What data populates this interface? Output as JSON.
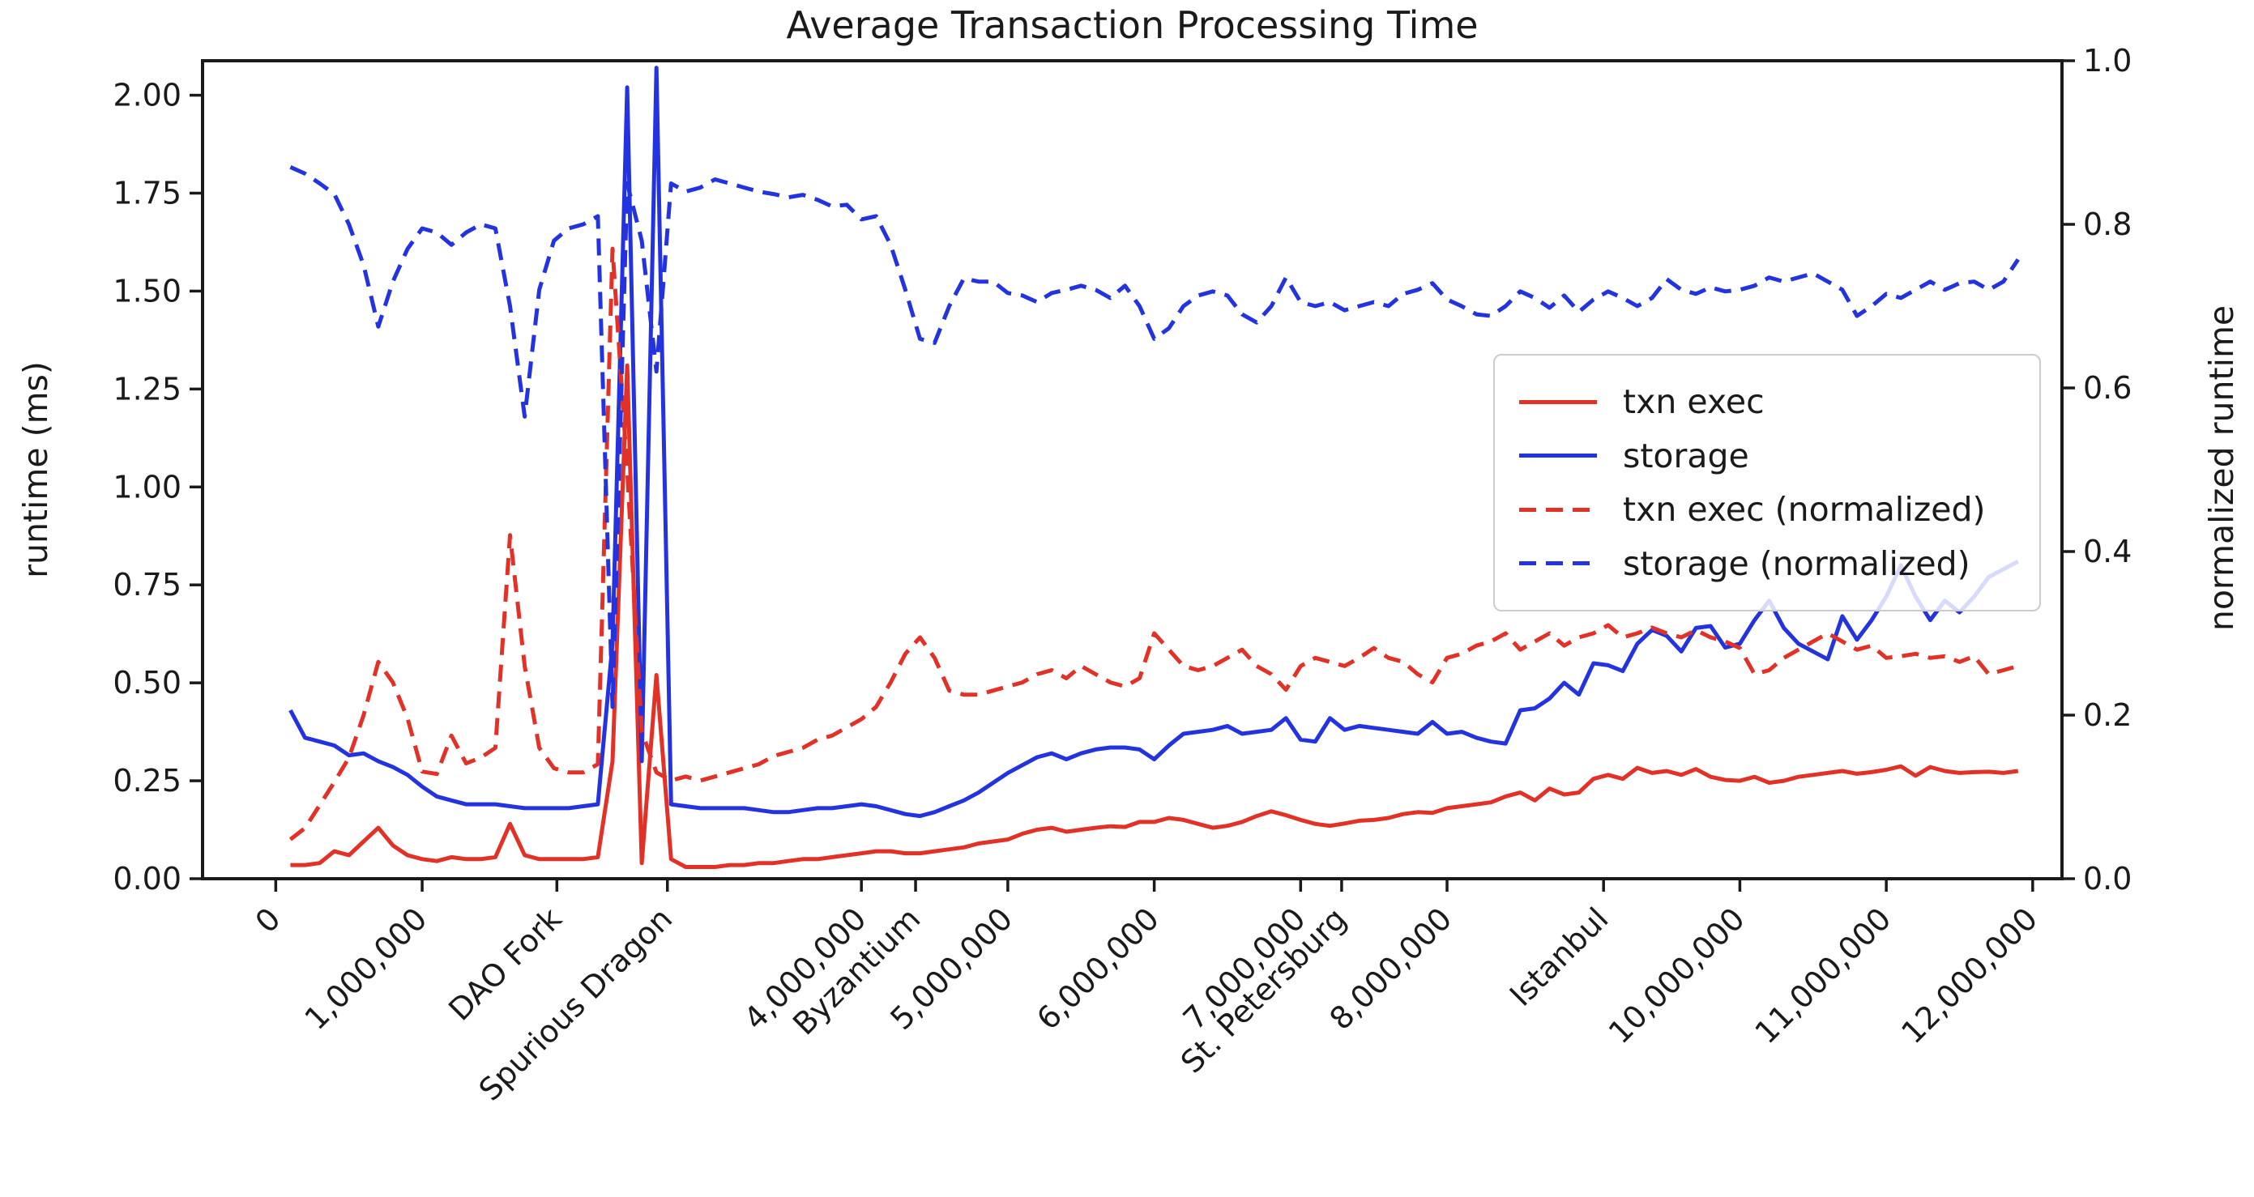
{
  "figure": {
    "title": "Average Transaction Processing Time",
    "background_color": "#ffffff",
    "text_color": "#1a1a1a",
    "accent_red": "#e23227",
    "accent_blue": "#2433e0"
  },
  "chart_data": {
    "type": "line",
    "title": "Average Transaction Processing Time",
    "grid": false,
    "legend_position": "center right",
    "x_axis": {
      "unit": "block number (millions)",
      "xlim_millions": [
        -0.5,
        12.2
      ],
      "ticks": [
        {
          "label": "0",
          "value": 0
        },
        {
          "label": "1,000,000",
          "value": 1.0
        },
        {
          "label": "DAO Fork",
          "value": 1.92
        },
        {
          "label": "Spurious Dragon",
          "value": 2.675
        },
        {
          "label": "4,000,000",
          "value": 4.0
        },
        {
          "label": "Byzantium",
          "value": 4.37
        },
        {
          "label": "5,000,000",
          "value": 5.0
        },
        {
          "label": "6,000,000",
          "value": 6.0
        },
        {
          "label": "7,000,000",
          "value": 7.0
        },
        {
          "label": "St. Petersburg",
          "value": 7.28
        },
        {
          "label": "8,000,000",
          "value": 8.0
        },
        {
          "label": "Istanbul",
          "value": 9.069
        },
        {
          "label": "10,000,000",
          "value": 10.0
        },
        {
          "label": "11,000,000",
          "value": 11.0
        },
        {
          "label": "12,000,000",
          "value": 12.0
        }
      ]
    },
    "y_axis_left": {
      "label": "runtime (ms)",
      "tick_labels": [
        "0.00",
        "0.25",
        "0.50",
        "0.75",
        "1.00",
        "1.25",
        "1.50",
        "1.75",
        "2.00"
      ],
      "tick_values": [
        0,
        0.25,
        0.5,
        0.75,
        1.0,
        1.25,
        1.5,
        1.75,
        2.0
      ],
      "ylim": [
        0,
        2.088
      ]
    },
    "y_axis_right": {
      "label": "normalized runtime",
      "tick_labels": [
        "0.0",
        "0.2",
        "0.4",
        "0.6",
        "0.8",
        "1.0"
      ],
      "tick_values": [
        0,
        0.2,
        0.4,
        0.6,
        0.8,
        1.0
      ],
      "ylim": [
        0,
        1.0
      ]
    },
    "x_millions": [
      0.1,
      0.2,
      0.3,
      0.4,
      0.5,
      0.6,
      0.7,
      0.8,
      0.9,
      1.0,
      1.1,
      1.2,
      1.3,
      1.4,
      1.5,
      1.6,
      1.7,
      1.8,
      1.9,
      2.0,
      2.1,
      2.2,
      2.3,
      2.4,
      2.5,
      2.6,
      2.7,
      2.8,
      2.9,
      3.0,
      3.1,
      3.2,
      3.3,
      3.4,
      3.5,
      3.6,
      3.7,
      3.8,
      3.9,
      4.0,
      4.1,
      4.2,
      4.3,
      4.4,
      4.5,
      4.6,
      4.7,
      4.8,
      4.9,
      5.0,
      5.1,
      5.2,
      5.3,
      5.4,
      5.5,
      5.6,
      5.7,
      5.8,
      5.9,
      6.0,
      6.1,
      6.2,
      6.3,
      6.4,
      6.5,
      6.6,
      6.7,
      6.8,
      6.9,
      7.0,
      7.1,
      7.2,
      7.3,
      7.4,
      7.5,
      7.6,
      7.7,
      7.8,
      7.9,
      8.0,
      8.1,
      8.2,
      8.3,
      8.4,
      8.5,
      8.6,
      8.7,
      8.8,
      8.9,
      9.0,
      9.1,
      9.2,
      9.3,
      9.4,
      9.5,
      9.6,
      9.7,
      9.8,
      9.9,
      10.0,
      10.1,
      10.2,
      10.3,
      10.4,
      10.5,
      10.6,
      10.7,
      10.8,
      10.9,
      11.0,
      11.1,
      11.2,
      11.3,
      11.4,
      11.5,
      11.6,
      11.7,
      11.8,
      11.9
    ],
    "series": [
      {
        "name": "txn exec",
        "color": "#e23227",
        "style": "solid",
        "axis": "left",
        "values": [
          0.035,
          0.035,
          0.04,
          0.07,
          0.06,
          0.095,
          0.13,
          0.085,
          0.06,
          0.05,
          0.045,
          0.055,
          0.05,
          0.05,
          0.055,
          0.14,
          0.06,
          0.05,
          0.05,
          0.05,
          0.05,
          0.055,
          0.3,
          1.31,
          0.04,
          0.52,
          0.05,
          0.03,
          0.03,
          0.03,
          0.035,
          0.035,
          0.04,
          0.04,
          0.045,
          0.05,
          0.05,
          0.055,
          0.06,
          0.065,
          0.07,
          0.07,
          0.065,
          0.065,
          0.07,
          0.075,
          0.08,
          0.09,
          0.095,
          0.1,
          0.115,
          0.125,
          0.13,
          0.12,
          0.125,
          0.13,
          0.134,
          0.132,
          0.145,
          0.145,
          0.155,
          0.15,
          0.14,
          0.13,
          0.135,
          0.145,
          0.16,
          0.172,
          0.162,
          0.15,
          0.14,
          0.135,
          0.141,
          0.148,
          0.15,
          0.155,
          0.165,
          0.17,
          0.168,
          0.18,
          0.185,
          0.19,
          0.195,
          0.21,
          0.22,
          0.2,
          0.23,
          0.215,
          0.22,
          0.255,
          0.265,
          0.255,
          0.283,
          0.27,
          0.275,
          0.265,
          0.28,
          0.26,
          0.252,
          0.25,
          0.26,
          0.245,
          0.25,
          0.26,
          0.265,
          0.27,
          0.275,
          0.268,
          0.272,
          0.278,
          0.287,
          0.263,
          0.285,
          0.275,
          0.27,
          0.272,
          0.273,
          0.27,
          0.275
        ]
      },
      {
        "name": "storage",
        "color": "#2433e0",
        "style": "solid",
        "axis": "left",
        "values": [
          0.43,
          0.36,
          0.35,
          0.34,
          0.315,
          0.32,
          0.3,
          0.285,
          0.265,
          0.235,
          0.21,
          0.2,
          0.19,
          0.19,
          0.19,
          0.185,
          0.18,
          0.18,
          0.18,
          0.18,
          0.185,
          0.19,
          0.6,
          2.02,
          0.3,
          2.07,
          0.19,
          0.185,
          0.18,
          0.18,
          0.18,
          0.18,
          0.175,
          0.17,
          0.17,
          0.175,
          0.18,
          0.18,
          0.185,
          0.19,
          0.185,
          0.175,
          0.165,
          0.16,
          0.17,
          0.185,
          0.2,
          0.22,
          0.245,
          0.27,
          0.29,
          0.31,
          0.32,
          0.305,
          0.32,
          0.33,
          0.335,
          0.335,
          0.33,
          0.305,
          0.34,
          0.37,
          0.375,
          0.38,
          0.39,
          0.37,
          0.375,
          0.38,
          0.41,
          0.355,
          0.35,
          0.41,
          0.38,
          0.39,
          0.385,
          0.38,
          0.375,
          0.37,
          0.4,
          0.37,
          0.375,
          0.36,
          0.35,
          0.345,
          0.43,
          0.435,
          0.46,
          0.5,
          0.47,
          0.55,
          0.545,
          0.53,
          0.6,
          0.635,
          0.62,
          0.58,
          0.64,
          0.645,
          0.59,
          0.6,
          0.66,
          0.71,
          0.64,
          0.6,
          0.58,
          0.56,
          0.67,
          0.61,
          0.66,
          0.72,
          0.8,
          0.72,
          0.66,
          0.71,
          0.68,
          0.72,
          0.77,
          0.79,
          0.81
        ]
      },
      {
        "name": "txn exec (normalized)",
        "color": "#e23227",
        "style": "dashed",
        "axis": "right",
        "values": [
          0.048,
          0.062,
          0.09,
          0.118,
          0.148,
          0.2,
          0.265,
          0.24,
          0.196,
          0.131,
          0.128,
          0.175,
          0.141,
          0.148,
          0.16,
          0.42,
          0.26,
          0.16,
          0.135,
          0.13,
          0.13,
          0.14,
          0.77,
          0.5,
          0.18,
          0.13,
          0.12,
          0.125,
          0.12,
          0.125,
          0.13,
          0.135,
          0.14,
          0.15,
          0.155,
          0.16,
          0.17,
          0.175,
          0.185,
          0.195,
          0.21,
          0.24,
          0.275,
          0.295,
          0.27,
          0.23,
          0.225,
          0.225,
          0.23,
          0.235,
          0.24,
          0.25,
          0.255,
          0.245,
          0.26,
          0.25,
          0.24,
          0.235,
          0.245,
          0.3,
          0.28,
          0.26,
          0.255,
          0.26,
          0.27,
          0.28,
          0.26,
          0.25,
          0.231,
          0.26,
          0.27,
          0.265,
          0.26,
          0.27,
          0.282,
          0.27,
          0.265,
          0.25,
          0.24,
          0.27,
          0.275,
          0.285,
          0.29,
          0.3,
          0.28,
          0.29,
          0.3,
          0.285,
          0.295,
          0.3,
          0.31,
          0.295,
          0.3,
          0.307,
          0.3,
          0.295,
          0.304,
          0.295,
          0.29,
          0.282,
          0.25,
          0.255,
          0.27,
          0.28,
          0.29,
          0.3,
          0.29,
          0.28,
          0.285,
          0.27,
          0.272,
          0.275,
          0.27,
          0.272,
          0.265,
          0.272,
          0.25,
          0.255,
          0.26
        ]
      },
      {
        "name": "storage (normalized)",
        "color": "#2433e0",
        "style": "dashed",
        "axis": "right",
        "values": [
          0.87,
          0.862,
          0.85,
          0.837,
          0.8,
          0.75,
          0.675,
          0.73,
          0.77,
          0.795,
          0.79,
          0.775,
          0.79,
          0.8,
          0.795,
          0.7,
          0.565,
          0.72,
          0.78,
          0.795,
          0.8,
          0.81,
          0.21,
          0.85,
          0.78,
          0.62,
          0.85,
          0.84,
          0.845,
          0.855,
          0.85,
          0.845,
          0.84,
          0.837,
          0.833,
          0.836,
          0.83,
          0.822,
          0.824,
          0.806,
          0.81,
          0.775,
          0.72,
          0.66,
          0.655,
          0.7,
          0.734,
          0.73,
          0.73,
          0.716,
          0.713,
          0.705,
          0.716,
          0.72,
          0.725,
          0.72,
          0.71,
          0.725,
          0.7,
          0.66,
          0.673,
          0.7,
          0.713,
          0.718,
          0.713,
          0.69,
          0.68,
          0.7,
          0.735,
          0.705,
          0.7,
          0.705,
          0.695,
          0.7,
          0.705,
          0.7,
          0.715,
          0.72,
          0.728,
          0.708,
          0.7,
          0.69,
          0.688,
          0.7,
          0.718,
          0.71,
          0.698,
          0.713,
          0.693,
          0.708,
          0.718,
          0.71,
          0.7,
          0.71,
          0.733,
          0.72,
          0.715,
          0.723,
          0.718,
          0.72,
          0.725,
          0.735,
          0.73,
          0.735,
          0.74,
          0.73,
          0.72,
          0.688,
          0.7,
          0.715,
          0.71,
          0.72,
          0.73,
          0.72,
          0.728,
          0.73,
          0.72,
          0.73,
          0.757
        ]
      }
    ]
  }
}
